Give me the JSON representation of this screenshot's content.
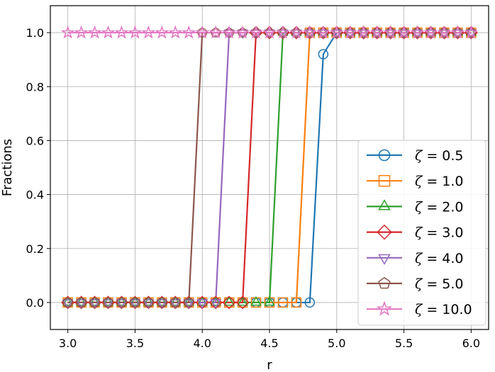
{
  "chart_data": {
    "type": "line",
    "xlabel": "r",
    "ylabel": "Fractions",
    "xlim": [
      2.87,
      6.13
    ],
    "ylim": [
      -0.1,
      1.1
    ],
    "xticks": [
      "3.0",
      "3.5",
      "4.0",
      "4.5",
      "5.0",
      "5.5",
      "6.0"
    ],
    "yticks": [
      "0.0",
      "0.2",
      "0.4",
      "0.6",
      "0.8",
      "1.0"
    ],
    "grid": true,
    "legend_position": "lower-right",
    "x": [
      3.0,
      3.1,
      3.2,
      3.3,
      3.4,
      3.5,
      3.6,
      3.7,
      3.8,
      3.9,
      4.0,
      4.1,
      4.2,
      4.3,
      4.4,
      4.5,
      4.6,
      4.7,
      4.8,
      4.9,
      5.0,
      5.1,
      5.2,
      5.3,
      5.4,
      5.5,
      5.6,
      5.7,
      5.8,
      5.9,
      6.0
    ],
    "series": [
      {
        "name": "ζ = 0.5",
        "symbol": "ζ",
        "value_text": "= 0.5",
        "color": "#1f77b4",
        "marker": "circle",
        "values": [
          0,
          0,
          0,
          0,
          0,
          0,
          0,
          0,
          0,
          0,
          0,
          0,
          0,
          0,
          0,
          0,
          0,
          0,
          0,
          0.92,
          1,
          1,
          1,
          1,
          1,
          1,
          1,
          1,
          1,
          1,
          1
        ]
      },
      {
        "name": "ζ = 1.0",
        "symbol": "ζ",
        "value_text": "= 1.0",
        "color": "#ff7f0e",
        "marker": "square",
        "values": [
          0,
          0,
          0,
          0,
          0,
          0,
          0,
          0,
          0,
          0,
          0,
          0,
          0,
          0,
          0,
          0,
          0,
          0,
          1,
          1,
          1,
          1,
          1,
          1,
          1,
          1,
          1,
          1,
          1,
          1,
          1
        ]
      },
      {
        "name": "ζ = 2.0",
        "symbol": "ζ",
        "value_text": "= 2.0",
        "color": "#2ca02c",
        "marker": "triangle-up",
        "values": [
          0,
          0,
          0,
          0,
          0,
          0,
          0,
          0,
          0,
          0,
          0,
          0,
          0,
          0,
          0,
          0,
          1,
          1,
          1,
          1,
          1,
          1,
          1,
          1,
          1,
          1,
          1,
          1,
          1,
          1,
          1
        ]
      },
      {
        "name": "ζ = 3.0",
        "symbol": "ζ",
        "value_text": "= 3.0",
        "color": "#d62728",
        "marker": "diamond",
        "values": [
          0,
          0,
          0,
          0,
          0,
          0,
          0,
          0,
          0,
          0,
          0,
          0,
          0,
          0,
          1,
          1,
          1,
          1,
          1,
          1,
          1,
          1,
          1,
          1,
          1,
          1,
          1,
          1,
          1,
          1,
          1
        ]
      },
      {
        "name": "ζ = 4.0",
        "symbol": "ζ",
        "value_text": "= 4.0",
        "color": "#9467bd",
        "marker": "triangle-down",
        "values": [
          0,
          0,
          0,
          0,
          0,
          0,
          0,
          0,
          0,
          0,
          0,
          0,
          1,
          1,
          1,
          1,
          1,
          1,
          1,
          1,
          1,
          1,
          1,
          1,
          1,
          1,
          1,
          1,
          1,
          1,
          1
        ]
      },
      {
        "name": "ζ = 5.0",
        "symbol": "ζ",
        "value_text": "= 5.0",
        "color": "#8c564b",
        "marker": "pentagon",
        "values": [
          0,
          0,
          0,
          0,
          0,
          0,
          0,
          0,
          0,
          0,
          1,
          1,
          1,
          1,
          1,
          1,
          1,
          1,
          1,
          1,
          1,
          1,
          1,
          1,
          1,
          1,
          1,
          1,
          1,
          1,
          1
        ]
      },
      {
        "name": "ζ = 10.0",
        "symbol": "ζ",
        "value_text": "= 10.0",
        "color": "#e377c2",
        "marker": "star",
        "values": [
          1,
          1,
          1,
          1,
          1,
          1,
          1,
          1,
          1,
          1,
          1,
          1,
          1,
          1,
          1,
          1,
          1,
          1,
          1,
          1,
          1,
          1,
          1,
          1,
          1,
          1,
          1,
          1,
          1,
          1,
          1
        ]
      }
    ]
  }
}
